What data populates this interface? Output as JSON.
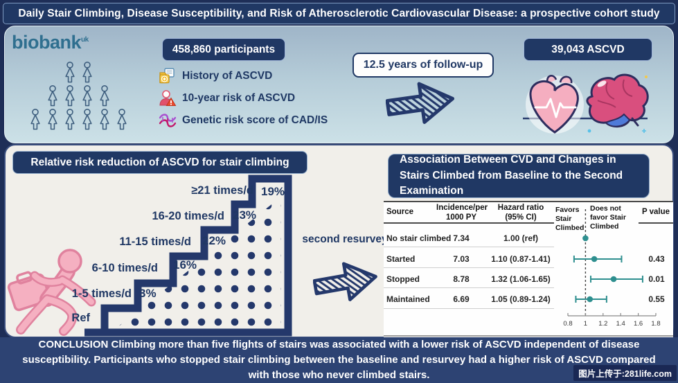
{
  "page": {
    "title": "Daily Stair Climbing, Disease Susceptibility, and Risk of Atherosclerotic Cardiovascular Disease: a prospective cohort study"
  },
  "cohort": {
    "logo_text": "biobank",
    "logo_sup": "uk",
    "participants_label": "458,860 participants",
    "risk_items": [
      {
        "icon": "folder-plus-icon",
        "label": "History of ASCVD"
      },
      {
        "icon": "person-warning-icon",
        "label": "10-year risk of ASCVD"
      },
      {
        "icon": "dna-icon",
        "label": "Genetic risk score of CAD/IS"
      }
    ],
    "followup_label": "12.5 years of follow-up",
    "outcome_label": "39,043 ASCVD"
  },
  "stair_panel": {
    "header": "Relative risk reduction of ASCVD for stair climbing",
    "resurvey_label": "second resurvey"
  },
  "association": {
    "header": "Association Between CVD and Changes in Stairs Climbed from Baseline to the Second Examination",
    "columns": {
      "source": "Source",
      "incidence": "Incidence/per 1000 PY",
      "hazard": "Hazard ratio (95% CI)",
      "favors": "Favors Stair Climbed",
      "not_favors": "Does not favor Stair Climbed",
      "p": "P value"
    }
  },
  "chart_data": [
    {
      "type": "bar",
      "title": "Relative risk reduction of ASCVD for stair climbing",
      "categories": [
        "Ref",
        "1-5 times/d",
        "6-10 times/d",
        "11-15 times/d",
        "16-20 times/d",
        "≥21 times/d"
      ],
      "values": [
        0,
        3,
        16,
        22,
        23,
        19
      ],
      "values_display": [
        "",
        "3%",
        "16%",
        "22%",
        "23%",
        "19%"
      ],
      "ylabel": "Relative risk reduction of ASCVD (%)"
    },
    {
      "type": "scatter",
      "subtype": "forest-plot",
      "title": "Association Between CVD and Changes in Stairs Climbed from Baseline to the Second Examination",
      "xlim": [
        0.8,
        1.8
      ],
      "axis_ticks": [
        "0.8",
        "1",
        "1.2",
        "1.4",
        "1.6",
        "1.8"
      ],
      "reference_line": 1.0,
      "rows": [
        {
          "source": "No stair climbed",
          "incidence": "7.34",
          "hazard": "1.00 (ref)",
          "hr": 1.0,
          "ci_low": null,
          "ci_high": null,
          "p": ""
        },
        {
          "source": "Started",
          "incidence": "7.03",
          "hazard": "1.10 (0.87-1.41)",
          "hr": 1.1,
          "ci_low": 0.87,
          "ci_high": 1.41,
          "p": "0.43"
        },
        {
          "source": "Stopped",
          "incidence": "8.78",
          "hazard": "1.32 (1.06-1.65)",
          "hr": 1.32,
          "ci_low": 1.06,
          "ci_high": 1.65,
          "p": "0.01"
        },
        {
          "source": "Maintained",
          "incidence": "6.69",
          "hazard": "1.05 (0.89-1.24)",
          "hr": 1.05,
          "ci_low": 0.89,
          "ci_high": 1.24,
          "p": "0.55"
        }
      ]
    }
  ],
  "conclusion": "CONCLUSION Climbing more than five flights of stairs was associated with a lower risk of ASCVD independent of disease susceptibility. Participants who stopped stair climbing between the baseline and resurvey had a higher risk of ASCVD compared with those who never climbed stairs.",
  "watermark": "图片上传于:281life.com",
  "colors": {
    "navy": "#203864",
    "teal": "#2E8F8F",
    "pink": "#F5B0C1",
    "panel_top": "#9FB5C8",
    "panel_bottom": "#CCE1E7",
    "paper": "#F1EFEA"
  }
}
